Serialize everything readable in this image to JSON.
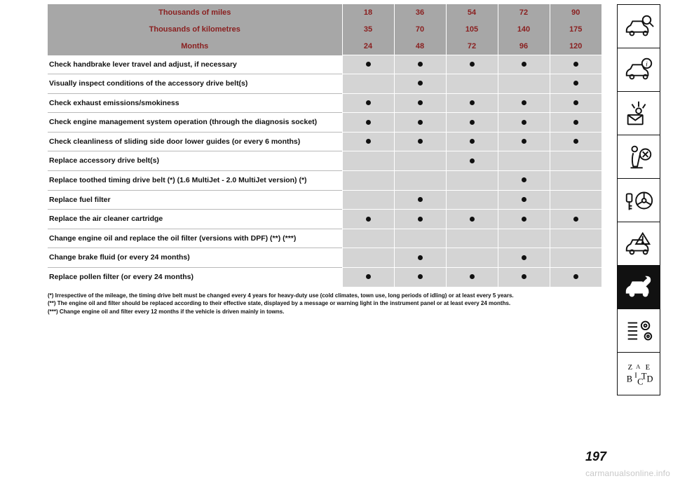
{
  "headers": {
    "miles": {
      "label": "Thousands of miles",
      "vals": [
        "18",
        "36",
        "54",
        "72",
        "90"
      ]
    },
    "km": {
      "label": "Thousands of kilometres",
      "vals": [
        "35",
        "70",
        "105",
        "140",
        "175"
      ]
    },
    "months": {
      "label": "Months",
      "vals": [
        "24",
        "48",
        "72",
        "96",
        "120"
      ]
    }
  },
  "rows": [
    {
      "label": "Check handbrake lever travel and adjust, if necessary",
      "dots": [
        1,
        1,
        1,
        1,
        1
      ]
    },
    {
      "label": "Visually inspect conditions of the accessory drive belt(s)",
      "dots": [
        0,
        1,
        0,
        0,
        1
      ]
    },
    {
      "label": "Check exhaust emissions/smokiness",
      "dots": [
        1,
        1,
        1,
        1,
        1
      ]
    },
    {
      "label": "Check engine management system operation (through the diagnosis socket)",
      "dots": [
        1,
        1,
        1,
        1,
        1
      ]
    },
    {
      "label": "Check cleanliness of sliding side door lower guides (or every 6 months)",
      "dots": [
        1,
        1,
        1,
        1,
        1
      ]
    },
    {
      "label": "Replace accessory drive belt(s)",
      "dots": [
        0,
        0,
        1,
        0,
        0
      ]
    },
    {
      "label": "Replace toothed timing drive belt (*) (1.6 MultiJet - 2.0 MultiJet version) (*)",
      "dots": [
        0,
        0,
        0,
        1,
        0
      ]
    },
    {
      "label": "Replace fuel filter",
      "dots": [
        0,
        1,
        0,
        1,
        0
      ]
    },
    {
      "label": "Replace the air cleaner cartridge",
      "dots": [
        1,
        1,
        1,
        1,
        1
      ]
    },
    {
      "label": "Change engine oil and replace the oil filter (versions with DPF) (**) (***)",
      "dots": [
        0,
        0,
        0,
        0,
        0
      ]
    },
    {
      "label": "Change brake fluid (or every 24 months)",
      "dots": [
        0,
        1,
        0,
        1,
        0
      ]
    },
    {
      "label": "Replace pollen filter (or every 24 months)",
      "dots": [
        1,
        1,
        1,
        1,
        1
      ]
    }
  ],
  "footnotes": [
    "(*) Irrespective of the mileage, the timing drive belt must be changed every 4 years for heavy-duty use (cold climates, town use, long periods of idling) or at least every 5 years.",
    "(**) The engine oil and filter should be replaced according to their effective state, displayed by a message or warning light in the instrument panel or at least every 24 months.",
    "(***) Change engine oil and filter every 12 months if the vehicle is driven mainly in towns."
  ],
  "pagenum": "197",
  "watermark": "carmanualsonline.info",
  "style": {
    "header_bg": "#a7a7a7",
    "header_text": "#8a1f1f",
    "valcell_bg": "#d4d4d4",
    "row_border": "#b9b9b9",
    "dot_color": "#111111"
  }
}
